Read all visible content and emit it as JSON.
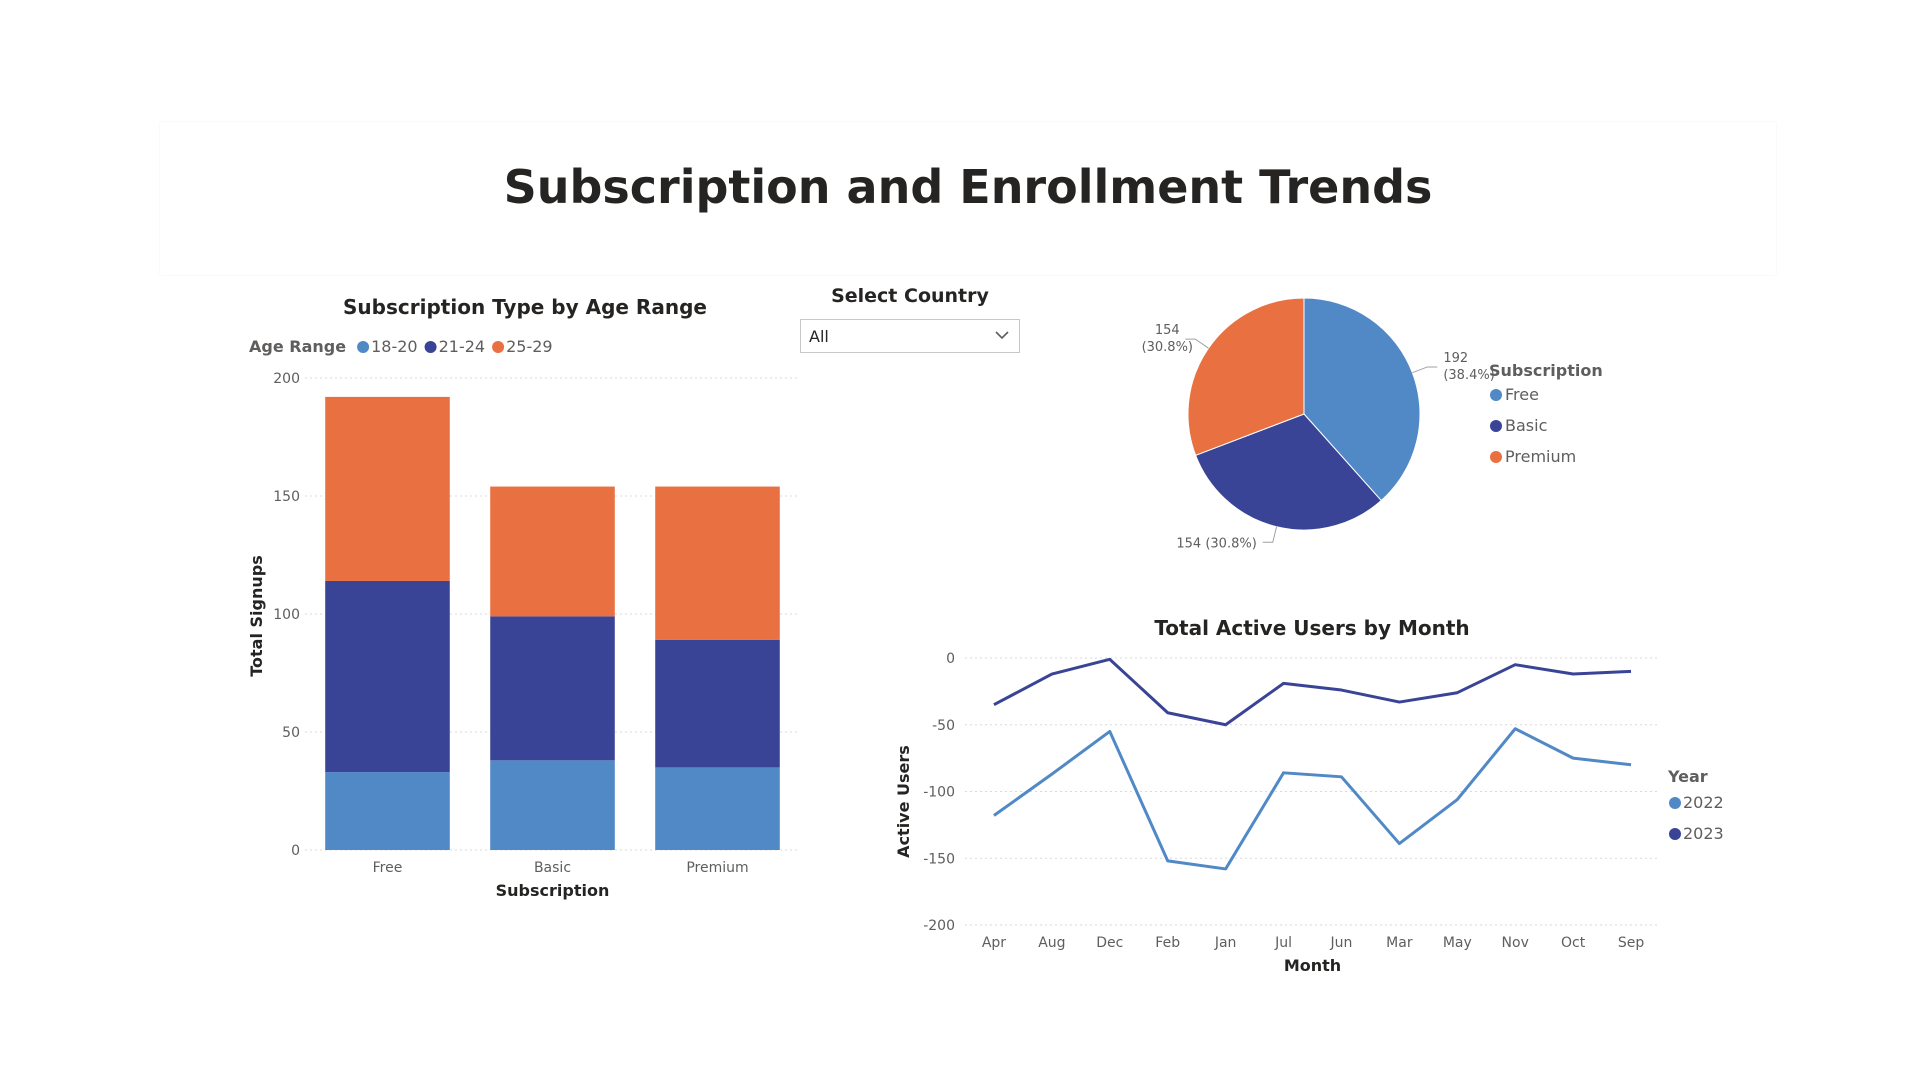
{
  "page": {
    "title": "Subscription and Enrollment Trends"
  },
  "slicer": {
    "title": "Select Country",
    "value": "All",
    "icon": "chevron-down-icon"
  },
  "colors": {
    "light_blue": "#5089c6",
    "dark_blue": "#3a4496",
    "orange": "#e97141"
  },
  "chart_data": [
    {
      "type": "bar",
      "stacked": true,
      "title": "Subscription Type by Age Range",
      "xlabel": "Subscription",
      "ylabel": "Total Signups",
      "ylim": [
        0,
        200
      ],
      "yticks": [
        "0",
        "50",
        "100",
        "150",
        "200"
      ],
      "legend_title": "Age Range",
      "legend_position": "top-left",
      "grid": true,
      "categories": [
        "Free",
        "Basic",
        "Premium"
      ],
      "series": [
        {
          "name": "18-20",
          "color": "#5089c6",
          "values": [
            33,
            38,
            35
          ]
        },
        {
          "name": "21-24",
          "color": "#3a4496",
          "values": [
            81,
            61,
            54
          ]
        },
        {
          "name": "25-29",
          "color": "#e97141",
          "values": [
            78,
            55,
            65
          ]
        }
      ]
    },
    {
      "type": "pie",
      "legend_title": "Subscription",
      "legend_position": "right",
      "labels": [
        "Free",
        "Basic",
        "Premium"
      ],
      "values": [
        192,
        154,
        154
      ],
      "colors": [
        "#5089c6",
        "#3a4496",
        "#e97141"
      ],
      "data_labels": [
        {
          "value": "192",
          "pct": "(38.4%)"
        },
        {
          "text": "154 (30.8%)"
        },
        {
          "value": "154",
          "pct": "(30.8%)"
        }
      ]
    },
    {
      "type": "line",
      "title": "Total Active Users by Month",
      "xlabel": "Month",
      "ylabel": "Active Users",
      "ylim": [
        -200,
        0
      ],
      "yticks": [
        "0",
        "-50",
        "-100",
        "-150",
        "-200"
      ],
      "legend_title": "Year",
      "legend_position": "right",
      "grid": true,
      "x": [
        "Apr",
        "Aug",
        "Dec",
        "Feb",
        "Jan",
        "Jul",
        "Jun",
        "Mar",
        "May",
        "Nov",
        "Oct",
        "Sep"
      ],
      "series": [
        {
          "name": "2022",
          "color": "#5089c6",
          "values": [
            -118,
            -87,
            -55,
            -152,
            -158,
            -86,
            -89,
            -139,
            -106,
            -53,
            -75,
            -80
          ]
        },
        {
          "name": "2023",
          "color": "#3a4496",
          "values": [
            -35,
            -12,
            -1,
            -41,
            -50,
            -19,
            -24,
            -33,
            -26,
            -5,
            -12,
            -10
          ]
        }
      ]
    }
  ]
}
